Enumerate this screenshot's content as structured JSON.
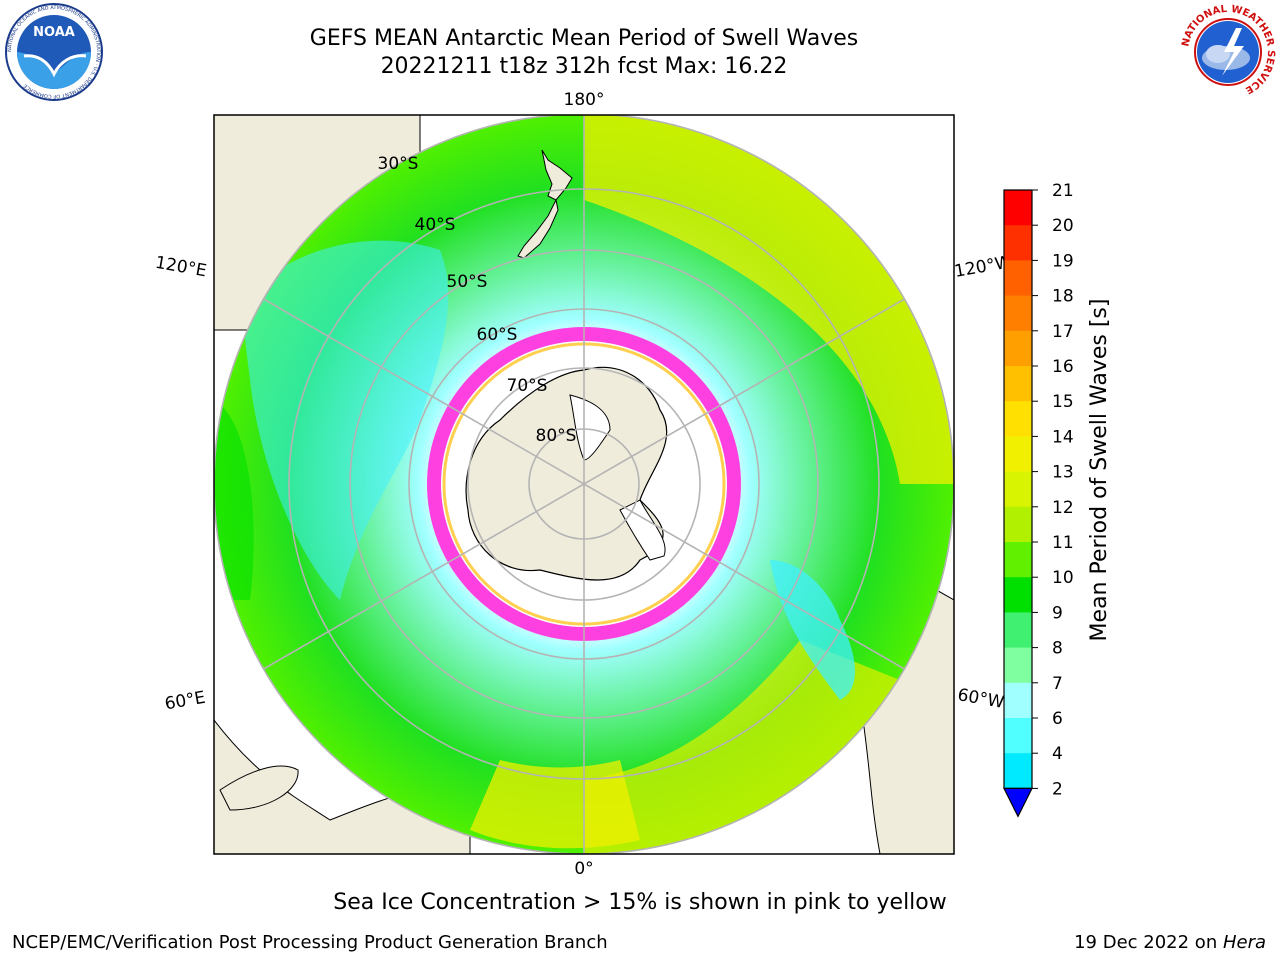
{
  "header": {
    "title_line1": "GEFS MEAN Antarctic Mean Period of Swell Waves",
    "title_line2": "20221211 t18z 312h fcst   Max: 16.22"
  },
  "logos": {
    "left": {
      "text": "NOAA",
      "ring_text": "NATIONAL OCEANIC AND ATMOSPHERIC ADMINISTRATION · U.S. DEPARTMENT OF COMMERCE"
    },
    "right": {
      "ring_text": "NATIONAL WEATHER SERVICE"
    }
  },
  "map": {
    "longitude_labels": {
      "top": "180°",
      "bottom": "0°",
      "upper_left": "120°E",
      "lower_left": "60°E",
      "upper_right": "120°W",
      "lower_right": "60°W"
    },
    "latitude_labels": [
      "30°S",
      "40°S",
      "50°S",
      "60°S",
      "70°S",
      "80°S"
    ],
    "colors": {
      "land": "#efecdc",
      "ice_pink": "#ff40e0",
      "ice_yellow": "#ffd050"
    }
  },
  "colorbar": {
    "label": "Mean Period of Swell Waves [s]",
    "ticks": [
      "21",
      "20",
      "19",
      "18",
      "17",
      "16",
      "15",
      "14",
      "13",
      "12",
      "11",
      "10",
      "9",
      "8",
      "7",
      "6",
      "4",
      "2"
    ],
    "colors": [
      "#ff0000",
      "#ff3000",
      "#ff6000",
      "#ff8000",
      "#ffa000",
      "#ffc000",
      "#ffe000",
      "#f0f000",
      "#d8f400",
      "#b0f000",
      "#60f000",
      "#00e000",
      "#40f070",
      "#80ffa0",
      "#a0ffff",
      "#50ffff",
      "#00eaff",
      "#00a0ff",
      "#0040ff"
    ],
    "extend_color": "#0000ff"
  },
  "footer": {
    "note": "Sea Ice Concentration > 15% is shown in pink to yellow",
    "credit_left": "NCEP/EMC/Verification Post Processing Product Generation Branch",
    "date": "19 Dec 2022 on ",
    "system": "Hera"
  }
}
